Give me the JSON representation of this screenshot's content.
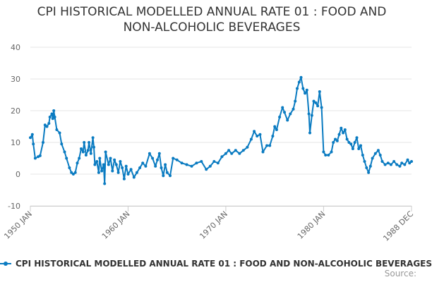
{
  "chart_data": {
    "type": "line",
    "title_lines": [
      "CPI HISTORICAL MODELLED ANNUAL RATE 01 : FOOD AND",
      "NON-ALCOHOLIC BEVERAGES"
    ],
    "xlabel": "",
    "ylabel": "",
    "ylim": [
      -10,
      40
    ],
    "yticks": [
      -10,
      0,
      10,
      20,
      30,
      40
    ],
    "xlim": [
      1950.0,
      1989.0
    ],
    "xticks": [
      {
        "value": 1950.0,
        "label": "1950 JAN"
      },
      {
        "value": 1960.0,
        "label": "1960 JAN"
      },
      {
        "value": 1970.0,
        "label": "1970 JAN"
      },
      {
        "value": 1980.0,
        "label": "1980 JAN"
      },
      {
        "value": 1989.0,
        "label": "1988 DEC"
      }
    ],
    "grid": true,
    "legend": "bottom",
    "series": [
      {
        "name": "CPI HISTORICAL MODELLED ANNUAL RATE 01 : FOOD AND NON-ALCOHOLIC BEVERAGES",
        "color": "#0a7bc1",
        "points": [
          [
            1950.0,
            11.5
          ],
          [
            1950.2,
            12.5
          ],
          [
            1950.3,
            9.5
          ],
          [
            1950.5,
            5.0
          ],
          [
            1950.8,
            5.5
          ],
          [
            1951.0,
            5.8
          ],
          [
            1951.3,
            10.0
          ],
          [
            1951.5,
            15.5
          ],
          [
            1951.7,
            15.0
          ],
          [
            1951.9,
            16.0
          ],
          [
            1952.0,
            18.0
          ],
          [
            1952.2,
            19.0
          ],
          [
            1952.3,
            17.5
          ],
          [
            1952.4,
            20.0
          ],
          [
            1952.5,
            18.0
          ],
          [
            1952.7,
            14.0
          ],
          [
            1953.0,
            13.0
          ],
          [
            1953.2,
            9.5
          ],
          [
            1953.5,
            7.0
          ],
          [
            1953.7,
            5.0
          ],
          [
            1954.0,
            2.0
          ],
          [
            1954.2,
            0.5
          ],
          [
            1954.4,
            0.0
          ],
          [
            1954.6,
            0.5
          ],
          [
            1954.8,
            3.5
          ],
          [
            1955.0,
            5.0
          ],
          [
            1955.2,
            8.0
          ],
          [
            1955.4,
            7.0
          ],
          [
            1955.5,
            10.0
          ],
          [
            1955.7,
            6.0
          ],
          [
            1955.9,
            7.5
          ],
          [
            1956.0,
            10.0
          ],
          [
            1956.2,
            6.5
          ],
          [
            1956.4,
            11.5
          ],
          [
            1956.5,
            8.5
          ],
          [
            1956.6,
            3.0
          ],
          [
            1956.8,
            4.0
          ],
          [
            1957.0,
            0.5
          ],
          [
            1957.1,
            5.0
          ],
          [
            1957.3,
            1.0
          ],
          [
            1957.5,
            3.0
          ],
          [
            1957.6,
            -3.0
          ],
          [
            1957.7,
            7.0
          ],
          [
            1958.0,
            3.0
          ],
          [
            1958.2,
            5.0
          ],
          [
            1958.4,
            1.0
          ],
          [
            1958.6,
            4.5
          ],
          [
            1958.8,
            3.0
          ],
          [
            1959.0,
            0.5
          ],
          [
            1959.2,
            4.0
          ],
          [
            1959.4,
            2.0
          ],
          [
            1959.6,
            -1.5
          ],
          [
            1959.8,
            2.5
          ],
          [
            1960.0,
            0.0
          ],
          [
            1960.3,
            1.5
          ],
          [
            1960.6,
            -1.0
          ],
          [
            1960.9,
            0.5
          ],
          [
            1961.2,
            2.0
          ],
          [
            1961.5,
            3.5
          ],
          [
            1961.8,
            2.5
          ],
          [
            1962.2,
            6.5
          ],
          [
            1962.5,
            5.0
          ],
          [
            1962.8,
            2.5
          ],
          [
            1963.0,
            4.5
          ],
          [
            1963.2,
            6.5
          ],
          [
            1963.4,
            2.0
          ],
          [
            1963.6,
            -0.5
          ],
          [
            1963.8,
            3.0
          ],
          [
            1964.0,
            0.5
          ],
          [
            1964.3,
            -0.5
          ],
          [
            1964.6,
            5.0
          ],
          [
            1965.0,
            4.5
          ],
          [
            1965.5,
            3.5
          ],
          [
            1966.0,
            3.0
          ],
          [
            1966.5,
            2.5
          ],
          [
            1967.0,
            3.5
          ],
          [
            1967.5,
            4.0
          ],
          [
            1968.0,
            1.5
          ],
          [
            1968.4,
            2.5
          ],
          [
            1968.8,
            4.0
          ],
          [
            1969.2,
            3.5
          ],
          [
            1969.6,
            5.5
          ],
          [
            1970.0,
            6.5
          ],
          [
            1970.3,
            7.5
          ],
          [
            1970.6,
            6.5
          ],
          [
            1971.0,
            7.5
          ],
          [
            1971.4,
            6.5
          ],
          [
            1971.8,
            7.5
          ],
          [
            1972.2,
            8.5
          ],
          [
            1972.6,
            11.0
          ],
          [
            1972.9,
            13.5
          ],
          [
            1973.2,
            12.0
          ],
          [
            1973.5,
            12.5
          ],
          [
            1973.8,
            7.0
          ],
          [
            1974.2,
            9.0
          ],
          [
            1974.5,
            9.0
          ],
          [
            1974.8,
            12.0
          ],
          [
            1975.0,
            15.0
          ],
          [
            1975.2,
            14.0
          ],
          [
            1975.5,
            18.0
          ],
          [
            1975.8,
            21.0
          ],
          [
            1976.0,
            19.5
          ],
          [
            1976.3,
            17.0
          ],
          [
            1976.6,
            19.0
          ],
          [
            1976.9,
            20.5
          ],
          [
            1977.1,
            23.0
          ],
          [
            1977.3,
            27.0
          ],
          [
            1977.5,
            29.0
          ],
          [
            1977.7,
            30.5
          ],
          [
            1977.9,
            27.0
          ],
          [
            1978.1,
            25.5
          ],
          [
            1978.3,
            26.5
          ],
          [
            1978.5,
            19.0
          ],
          [
            1978.6,
            13.0
          ],
          [
            1978.8,
            18.5
          ],
          [
            1979.0,
            23.0
          ],
          [
            1979.2,
            22.5
          ],
          [
            1979.4,
            21.5
          ],
          [
            1979.6,
            26.0
          ],
          [
            1979.8,
            21.0
          ],
          [
            1980.0,
            7.0
          ],
          [
            1980.2,
            6.0
          ],
          [
            1980.5,
            6.0
          ],
          [
            1980.8,
            7.0
          ],
          [
            1981.0,
            10.0
          ],
          [
            1981.2,
            11.0
          ],
          [
            1981.4,
            10.5
          ],
          [
            1981.6,
            12.5
          ],
          [
            1981.8,
            14.5
          ],
          [
            1982.0,
            13.0
          ],
          [
            1982.2,
            14.0
          ],
          [
            1982.4,
            11.0
          ],
          [
            1982.6,
            10.0
          ],
          [
            1982.8,
            9.5
          ],
          [
            1983.0,
            8.0
          ],
          [
            1983.2,
            10.0
          ],
          [
            1983.4,
            11.5
          ],
          [
            1983.6,
            8.0
          ],
          [
            1983.8,
            9.0
          ],
          [
            1984.0,
            6.0
          ],
          [
            1984.2,
            4.0
          ],
          [
            1984.4,
            2.0
          ],
          [
            1984.6,
            0.5
          ],
          [
            1984.8,
            2.5
          ],
          [
            1985.0,
            5.0
          ],
          [
            1985.3,
            6.5
          ],
          [
            1985.6,
            7.5
          ],
          [
            1985.8,
            6.0
          ],
          [
            1986.0,
            4.0
          ],
          [
            1986.3,
            3.0
          ],
          [
            1986.6,
            3.5
          ],
          [
            1986.9,
            3.0
          ],
          [
            1987.2,
            4.0
          ],
          [
            1987.5,
            3.0
          ],
          [
            1987.8,
            2.5
          ],
          [
            1988.0,
            3.5
          ],
          [
            1988.3,
            3.0
          ],
          [
            1988.6,
            4.5
          ],
          [
            1988.8,
            3.5
          ],
          [
            1989.0,
            4.0
          ]
        ]
      }
    ]
  },
  "legend_text": "CPI HISTORICAL MODELLED ANNUAL RATE 01 : FOOD AND NON-ALCOHOLIC BEVERAGES",
  "source_label": "Source:"
}
